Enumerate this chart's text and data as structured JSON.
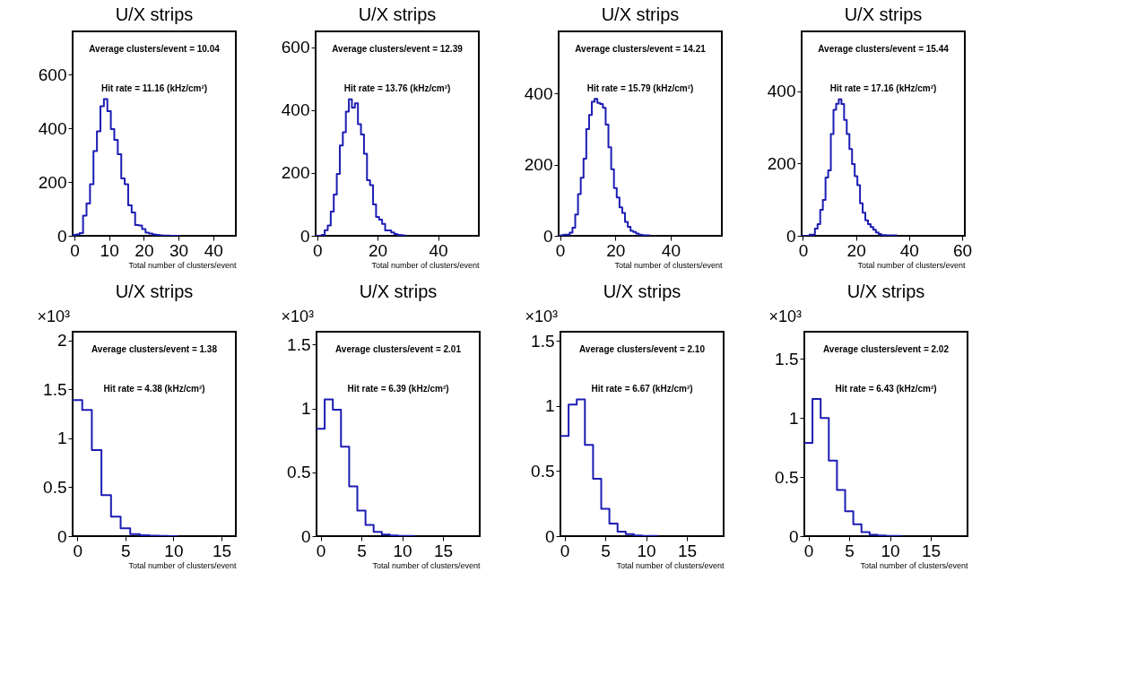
{
  "chart_data": [
    {
      "type": "histogram",
      "title": "U/X strips",
      "xlabel": "Total number of clusters/event",
      "color": "#1c1cb4",
      "grid": false,
      "xlim": [
        -0.5,
        46.5
      ],
      "ylim": [
        0,
        760
      ],
      "xticks": [
        0,
        10,
        20,
        30,
        40
      ],
      "yticks": [
        0,
        200,
        400,
        600
      ],
      "annotations": [
        "Average clusters/event =  10.04",
        "Hit rate =  11.16 (kHz/cm²)"
      ],
      "bins": [
        -0.5,
        0.5,
        1.5,
        2.5,
        3.5,
        4.5,
        5.5,
        6.5,
        7.5,
        8.5,
        9.5,
        10.5,
        11.5,
        12.5,
        13.5,
        14.5,
        15.5,
        16.5,
        17.5,
        18.5,
        19.5,
        20.5,
        21.5,
        22.5,
        23.5,
        24.5,
        25.5,
        26.5,
        27.5,
        28.5,
        29.5,
        30.5
      ],
      "values": [
        3,
        5,
        10,
        75,
        120,
        192,
        315,
        388,
        482,
        508,
        463,
        397,
        357,
        303,
        213,
        192,
        113,
        87,
        40,
        38,
        25,
        12,
        8,
        5,
        3,
        2,
        1,
        1,
        0,
        0,
        0
      ]
    },
    {
      "type": "histogram",
      "title": "U/X strips",
      "xlabel": "Total number of clusters/event",
      "color": "#1c1cb4",
      "grid": false,
      "xlim": [
        -0.5,
        53.5
      ],
      "ylim": [
        0,
        650
      ],
      "xticks": [
        0,
        20,
        40
      ],
      "yticks": [
        0,
        200,
        400,
        600
      ],
      "annotations": [
        "Average clusters/event =  12.39",
        "Hit rate =  13.76 (kHz/cm²)"
      ],
      "bins": [
        -0.5,
        0.5,
        1.5,
        2.5,
        3.5,
        4.5,
        5.5,
        6.5,
        7.5,
        8.5,
        9.5,
        10.5,
        11.5,
        12.5,
        13.5,
        14.5,
        15.5,
        16.5,
        17.5,
        18.5,
        19.5,
        20.5,
        21.5,
        22.5,
        23.5,
        24.5,
        25.5,
        26.5,
        27.5,
        28.5,
        29.5
      ],
      "values": [
        0,
        0,
        3,
        18,
        33,
        77,
        131,
        197,
        287,
        329,
        395,
        434,
        408,
        421,
        355,
        322,
        261,
        177,
        161,
        100,
        60,
        51,
        38,
        17,
        17,
        11,
        6,
        3,
        2,
        1
      ]
    },
    {
      "type": "histogram",
      "title": "U/X strips",
      "xlabel": "Total number of clusters/event",
      "color": "#1c1cb4",
      "grid": false,
      "xlim": [
        -0.5,
        58.5
      ],
      "ylim": [
        0,
        575
      ],
      "xticks": [
        0,
        20,
        40
      ],
      "yticks": [
        0,
        200,
        400
      ],
      "annotations": [
        "Average clusters/event =  14.21",
        "Hit rate =  15.79 (kHz/cm²)"
      ],
      "bins": [
        -0.5,
        0.5,
        1.5,
        2.5,
        3.5,
        4.5,
        5.5,
        6.5,
        7.5,
        8.5,
        9.5,
        10.5,
        11.5,
        12.5,
        13.5,
        14.5,
        15.5,
        16.5,
        17.5,
        18.5,
        19.5,
        20.5,
        21.5,
        22.5,
        23.5,
        24.5,
        25.5,
        26.5,
        27.5,
        28.5,
        29.5,
        30.5,
        31.5,
        32.5
      ],
      "values": [
        0,
        2,
        3,
        3,
        9,
        23,
        60,
        117,
        163,
        217,
        300,
        340,
        377,
        385,
        374,
        371,
        360,
        313,
        249,
        187,
        134,
        108,
        80,
        64,
        39,
        25,
        14,
        11,
        6,
        3,
        2,
        1,
        1
      ]
    },
    {
      "type": "histogram",
      "title": "U/X strips",
      "xlabel": "Total number of clusters/event",
      "color": "#1c1cb4",
      "grid": false,
      "xlim": [
        -0.5,
        61
      ],
      "ylim": [
        0,
        565
      ],
      "xticks": [
        0,
        20,
        40,
        60
      ],
      "yticks": [
        0,
        200,
        400
      ],
      "annotations": [
        "Average clusters/event =  15.44",
        "Hit rate =  17.16 (kHz/cm²)"
      ],
      "bins": [
        -0.5,
        0.5,
        1.5,
        2.5,
        3.5,
        4.5,
        5.5,
        6.5,
        7.5,
        8.5,
        9.5,
        10.5,
        11.5,
        12.5,
        13.5,
        14.5,
        15.5,
        16.5,
        17.5,
        18.5,
        19.5,
        20.5,
        21.5,
        22.5,
        23.5,
        24.5,
        25.5,
        26.5,
        27.5,
        28.5,
        29.5,
        30.5,
        31.5,
        32.5,
        33.5,
        34.5,
        35.5
      ],
      "values": [
        0,
        0,
        0,
        3,
        3,
        20,
        32,
        72,
        99,
        161,
        181,
        281,
        348,
        365,
        377,
        364,
        320,
        281,
        240,
        198,
        165,
        140,
        90,
        64,
        43,
        32,
        24,
        17,
        9,
        5,
        2,
        2,
        1,
        1,
        1,
        1
      ]
    },
    {
      "type": "histogram",
      "title": "U/X strips",
      "xlabel": "Total number of clusters/event",
      "ylabel": "×10³",
      "color": "#1c1cb4",
      "grid": false,
      "xlim": [
        -0.5,
        16.5
      ],
      "ylim": [
        0,
        2.09
      ],
      "xticks": [
        0,
        5,
        10,
        15
      ],
      "yticks": [
        0,
        0.5,
        1,
        1.5,
        2
      ],
      "annotations": [
        "Average clusters/event =   1.38",
        "Hit rate =   4.38 (kHz/cm²)"
      ],
      "bins": [
        -0.5,
        0.5,
        1.5,
        2.5,
        3.5,
        4.5,
        5.5,
        6.5,
        7.5,
        8.5,
        9.5,
        10.5
      ],
      "values": [
        1.39,
        1.29,
        0.88,
        0.42,
        0.2,
        0.08,
        0.02,
        0.01,
        0.004,
        0.002,
        0.001
      ]
    },
    {
      "type": "histogram",
      "title": "U/X strips",
      "xlabel": "Total number of clusters/event",
      "ylabel": "×10³",
      "color": "#1c1cb4",
      "grid": false,
      "xlim": [
        -0.5,
        19.5
      ],
      "ylim": [
        0,
        1.6
      ],
      "xticks": [
        0,
        5,
        10,
        15
      ],
      "yticks": [
        0,
        0.5,
        1,
        1.5
      ],
      "annotations": [
        "Average clusters/event =   2.01",
        "Hit rate =   6.39 (kHz/cm²)"
      ],
      "bins": [
        -0.5,
        0.5,
        1.5,
        2.5,
        3.5,
        4.5,
        5.5,
        6.5,
        7.5,
        8.5,
        9.5,
        10.5,
        11.5
      ],
      "values": [
        0.84,
        1.07,
        0.99,
        0.7,
        0.39,
        0.2,
        0.087,
        0.033,
        0.013,
        0.005,
        0.002,
        0.001
      ]
    },
    {
      "type": "histogram",
      "title": "U/X strips",
      "xlabel": "Total number of clusters/event",
      "ylabel": "×10³",
      "color": "#1c1cb4",
      "grid": false,
      "xlim": [
        -0.5,
        19.5
      ],
      "ylim": [
        0,
        1.57
      ],
      "xticks": [
        0,
        5,
        10,
        15
      ],
      "yticks": [
        0,
        0.5,
        1,
        1.5
      ],
      "annotations": [
        "Average clusters/event =   2.10",
        "Hit rate =   6.67 (kHz/cm²)"
      ],
      "bins": [
        -0.5,
        0.5,
        1.5,
        2.5,
        3.5,
        4.5,
        5.5,
        6.5,
        7.5,
        8.5,
        9.5,
        10.5,
        11.5
      ],
      "values": [
        0.77,
        1.01,
        1.05,
        0.7,
        0.44,
        0.21,
        0.096,
        0.035,
        0.015,
        0.005,
        0.002,
        0.001
      ]
    },
    {
      "type": "histogram",
      "title": "U/X strips",
      "xlabel": "Total number of clusters/event",
      "ylabel": "×10³",
      "color": "#1c1cb4",
      "grid": false,
      "xlim": [
        -0.5,
        19.5
      ],
      "ylim": [
        0,
        1.73
      ],
      "xticks": [
        0,
        5,
        10,
        15
      ],
      "yticks": [
        0,
        0.5,
        1,
        1.5
      ],
      "annotations": [
        "Average clusters/event =   2.02",
        "Hit rate =   6.43 (kHz/cm²)"
      ],
      "bins": [
        -0.5,
        0.5,
        1.5,
        2.5,
        3.5,
        4.5,
        5.5,
        6.5,
        7.5,
        8.5,
        9.5,
        10.5,
        11.5
      ],
      "values": [
        0.79,
        1.16,
        1.0,
        0.64,
        0.39,
        0.21,
        0.1,
        0.034,
        0.012,
        0.005,
        0.002,
        0.001
      ]
    }
  ]
}
